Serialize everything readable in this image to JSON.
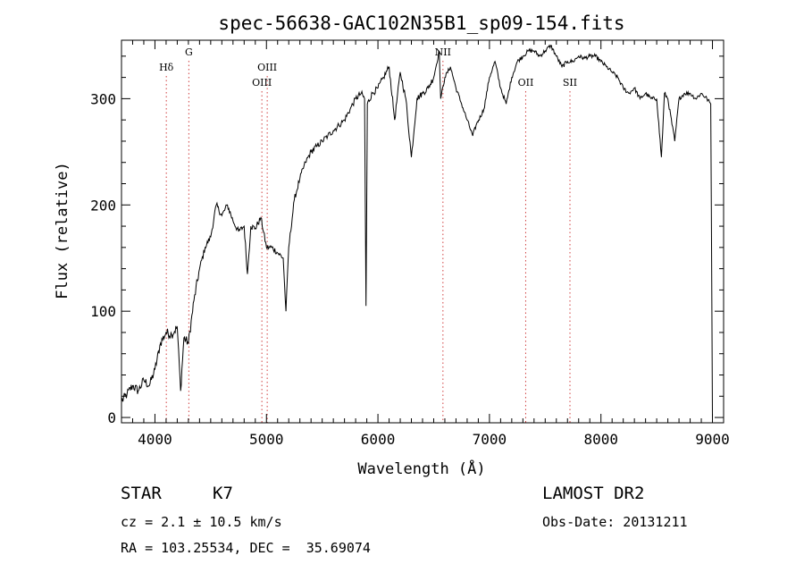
{
  "chart_data": {
    "type": "line",
    "title": "spec-56638-GAC102N35B1_sp09-154.fits",
    "xlabel": "Wavelength (Å)",
    "ylabel": "Flux (relative)",
    "xlim": [
      3700,
      9100
    ],
    "ylim": [
      -5,
      355
    ],
    "xticks": [
      4000,
      5000,
      6000,
      7000,
      8000,
      9000
    ],
    "yticks": [
      0,
      100,
      200,
      300
    ],
    "grid": false,
    "series": [
      {
        "x": [
          3700,
          3750,
          3800,
          3850,
          3900,
          3950,
          4000,
          4050,
          4100,
          4150,
          4200,
          4230,
          4260,
          4300,
          4350,
          4400,
          4450,
          4500,
          4550,
          4600,
          4650,
          4700,
          4750,
          4800,
          4830,
          4860,
          4900,
          4950,
          5000,
          5050,
          5100,
          5150,
          5175,
          5200,
          5250,
          5300,
          5350,
          5400,
          5450,
          5500,
          5550,
          5600,
          5650,
          5700,
          5750,
          5800,
          5850,
          5880,
          5893,
          5905,
          5950,
          6000,
          6050,
          6100,
          6150,
          6200,
          6250,
          6300,
          6350,
          6400,
          6450,
          6500,
          6550,
          6563,
          6600,
          6650,
          6700,
          6750,
          6800,
          6850,
          6880,
          6950,
          7000,
          7050,
          7100,
          7150,
          7200,
          7250,
          7300,
          7350,
          7400,
          7450,
          7500,
          7550,
          7600,
          7650,
          7700,
          7750,
          7800,
          7850,
          7900,
          7950,
          8000,
          8050,
          8100,
          8150,
          8200,
          8250,
          8300,
          8350,
          8400,
          8450,
          8500,
          8542,
          8570,
          8600,
          8662,
          8700,
          8750,
          8800,
          8850,
          8900,
          8950,
          8985,
          8995,
          9000
        ],
        "y": [
          15,
          22,
          30,
          25,
          35,
          30,
          45,
          70,
          80,
          78,
          85,
          25,
          75,
          70,
          110,
          140,
          160,
          170,
          200,
          190,
          200,
          185,
          175,
          180,
          135,
          180,
          178,
          188,
          160,
          160,
          155,
          150,
          100,
          160,
          205,
          225,
          240,
          250,
          255,
          260,
          265,
          270,
          275,
          280,
          290,
          300,
          305,
          300,
          105,
          295,
          305,
          310,
          320,
          330,
          280,
          325,
          300,
          245,
          300,
          305,
          310,
          320,
          345,
          300,
          320,
          330,
          310,
          295,
          280,
          265,
          275,
          290,
          320,
          335,
          310,
          295,
          320,
          335,
          340,
          345,
          345,
          340,
          345,
          350,
          340,
          330,
          335,
          335,
          340,
          338,
          340,
          340,
          335,
          330,
          325,
          320,
          310,
          305,
          310,
          300,
          305,
          300,
          300,
          245,
          305,
          300,
          260,
          300,
          305,
          305,
          300,
          305,
          300,
          295,
          100,
          0
        ]
      }
    ],
    "annotations": [
      {
        "label": "Hδ",
        "x": 4102,
        "row": 2
      },
      {
        "label": "G",
        "x": 4304,
        "row": 1
      },
      {
        "label": "OIII",
        "x": 4959,
        "row": 3
      },
      {
        "label": "OIII",
        "x": 5007,
        "row": 2
      },
      {
        "label": "NII",
        "x": 6583,
        "row": 1
      },
      {
        "label": "OII",
        "x": 7325,
        "row": 3
      },
      {
        "label": "SII",
        "x": 7722,
        "row": 3
      }
    ]
  },
  "info": {
    "object_class": "STAR",
    "subclass": "K7",
    "cz": "cz = 2.1 ± 10.5 km/s",
    "coords": "RA = 103.25534, DEC =  35.69074",
    "survey": "LAMOST DR2",
    "obs_date": "Obs-Date: 20131211"
  }
}
